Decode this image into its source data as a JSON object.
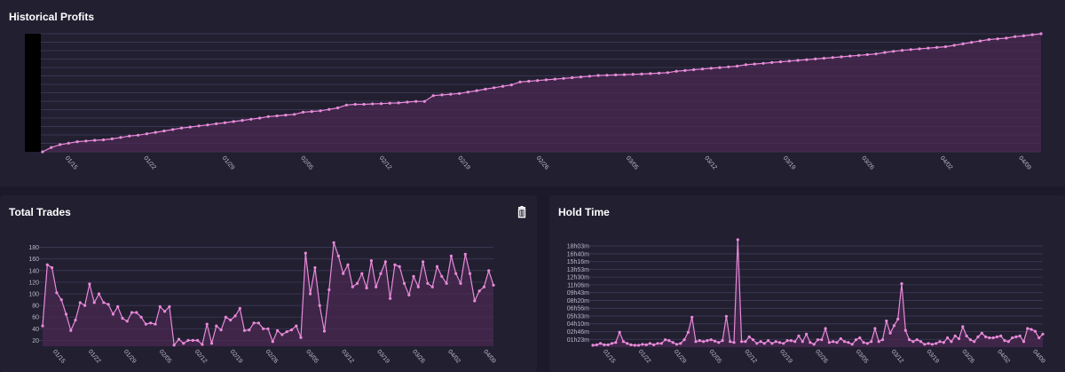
{
  "cards": {
    "profits": {
      "title": "Historical Profits"
    },
    "trades": {
      "title": "Total Trades",
      "action_icon": "trash-icon"
    },
    "hold": {
      "title": "Hold Time"
    }
  },
  "colors": {
    "background": "#1c1a2a",
    "card": "#221f31",
    "line": "#e98ad9",
    "fill": "#4a2a51",
    "grid": "#3a3650",
    "text": "#bdb8cc"
  },
  "chart_data": [
    {
      "id": "profits",
      "type": "area",
      "title": "Historical Profits",
      "x_tick_labels": [
        "01/15",
        "01/22",
        "01/29",
        "02/05",
        "02/12",
        "02/19",
        "02/26",
        "03/05",
        "03/12",
        "03/19",
        "03/26",
        "04/02",
        "04/09"
      ],
      "x_start": "01/13",
      "x_end": "04/11",
      "grid": true,
      "y_tick_labels_visible": false,
      "values": [
        0,
        3,
        5,
        6,
        7,
        7.5,
        8,
        8.3,
        9,
        10,
        11,
        11.5,
        12.5,
        13.5,
        14.5,
        15.5,
        16.5,
        17.2,
        18,
        18.7,
        19.5,
        20.2,
        21,
        21.8,
        22.6,
        23.4,
        24.5,
        25,
        25.5,
        26,
        27.5,
        28,
        28.5,
        29.5,
        30.5,
        32.5,
        33,
        33,
        33.3,
        33.5,
        33.8,
        34,
        34.5,
        35,
        35,
        39,
        39.5,
        40,
        40.5,
        41.5,
        42.5,
        43.5,
        44.5,
        45.5,
        46.5,
        48.5,
        49,
        49.5,
        50,
        50.5,
        51,
        51.5,
        52,
        52.5,
        53,
        53.2,
        53.4,
        53.6,
        53.8,
        54,
        54.3,
        54.6,
        55,
        56,
        56.5,
        57,
        57.5,
        58,
        58.5,
        59,
        59.5,
        60.5,
        61,
        61.5,
        62,
        62.5,
        63,
        63.5,
        64,
        64.5,
        65,
        65.5,
        66,
        66.5,
        67,
        67.5,
        68,
        69,
        69.8,
        70.5,
        71,
        71.5,
        72,
        72.5,
        73,
        74,
        75,
        76,
        77,
        78,
        78.5,
        79,
        80,
        80.5,
        81.3,
        82
      ]
    },
    {
      "id": "trades",
      "type": "area",
      "title": "Total Trades",
      "x_tick_labels": [
        "01/15",
        "01/22",
        "01/29",
        "02/05",
        "02/12",
        "02/19",
        "02/26",
        "03/05",
        "03/12",
        "03/19",
        "03/26",
        "04/02",
        "04/09"
      ],
      "x_start": "01/13",
      "x_end": "04/11",
      "grid": true,
      "ylim": [
        10,
        190
      ],
      "y_ticks": [
        20,
        40,
        60,
        80,
        100,
        120,
        140,
        160,
        180
      ],
      "values": [
        45,
        150,
        145,
        102,
        90,
        65,
        37,
        55,
        85,
        80,
        117,
        85,
        100,
        85,
        82,
        65,
        78,
        58,
        53,
        68,
        68,
        60,
        48,
        50,
        48,
        78,
        70,
        78,
        12,
        22,
        15,
        20,
        20,
        20,
        13,
        48,
        15,
        45,
        38,
        60,
        55,
        62,
        75,
        37,
        38,
        50,
        50,
        40,
        40,
        18,
        37,
        30,
        35,
        38,
        45,
        25,
        170,
        100,
        145,
        80,
        36,
        107,
        188,
        165,
        135,
        150,
        112,
        118,
        135,
        110,
        157,
        112,
        135,
        155,
        92,
        150,
        147,
        118,
        98,
        130,
        112,
        155,
        118,
        112,
        147,
        130,
        118,
        165,
        135,
        118,
        168,
        135,
        88,
        105,
        112,
        140,
        115
      ]
    },
    {
      "id": "hold",
      "type": "area",
      "title": "Hold Time",
      "x_tick_labels": [
        "01/15",
        "01/22",
        "01/29",
        "02/05",
        "02/12",
        "02/19",
        "02/26",
        "03/05",
        "03/12",
        "03/19",
        "03/26",
        "04/02",
        "04/09"
      ],
      "x_start": "01/13",
      "x_end": "04/11",
      "grid": true,
      "ylim": [
        0,
        1150
      ],
      "y_ticks": [
        83,
        166,
        250,
        333,
        416,
        499,
        583,
        666,
        750,
        833,
        916,
        999,
        1083
      ],
      "y_tick_labels": [
        "01h23m",
        "02h46m",
        "04h10m",
        "05h33m",
        "06h56m",
        "08h20m",
        "09h43m",
        "11h06m",
        "12h30m",
        "13h53m",
        "15h16m",
        "16h40m",
        "18h03m"
      ],
      "values": [
        20,
        25,
        40,
        25,
        25,
        40,
        50,
        160,
        60,
        40,
        25,
        20,
        20,
        30,
        25,
        40,
        25,
        40,
        40,
        80,
        70,
        50,
        30,
        40,
        80,
        160,
        320,
        60,
        70,
        60,
        70,
        80,
        65,
        50,
        70,
        330,
        60,
        50,
        1150,
        60,
        60,
        110,
        80,
        40,
        60,
        40,
        70,
        40,
        60,
        50,
        40,
        70,
        70,
        60,
        120,
        60,
        140,
        50,
        30,
        80,
        80,
        200,
        50,
        60,
        50,
        90,
        60,
        50,
        30,
        80,
        100,
        50,
        40,
        60,
        200,
        60,
        80,
        280,
        150,
        230,
        300,
        680,
        180,
        80,
        60,
        80,
        60,
        30,
        40,
        30,
        40,
        60,
        50,
        100,
        60,
        120,
        90,
        220,
        120,
        80,
        60,
        110,
        150,
        110,
        100,
        100,
        110,
        120,
        70,
        60,
        100,
        110,
        120,
        60,
        200,
        190,
        170,
        100,
        140
      ]
    }
  ]
}
